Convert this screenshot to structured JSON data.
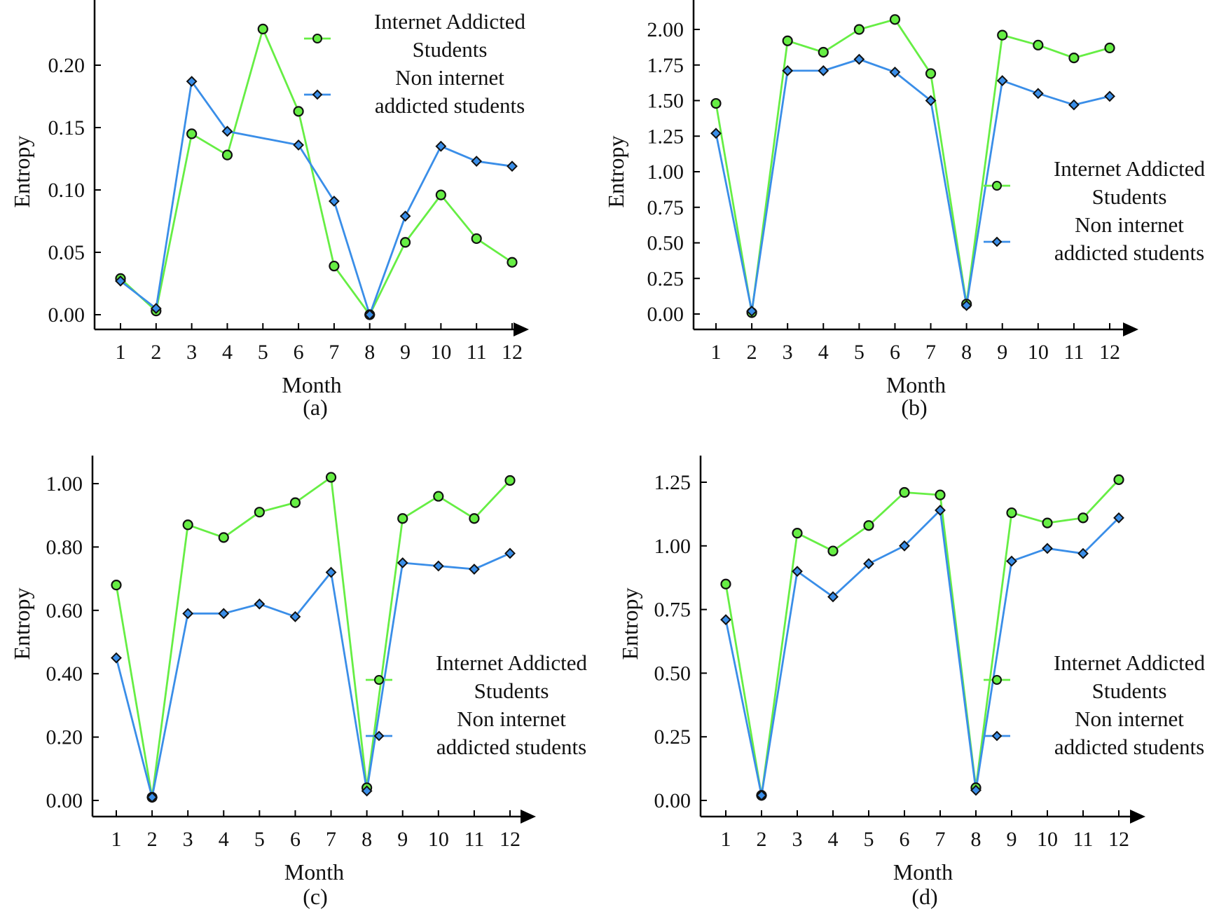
{
  "figure": {
    "colors": {
      "internet_addicted": "#66ee44",
      "non_addicted": "#3a8ee8",
      "axis": "#000000"
    },
    "icons": {
      "internet_addicted": "circle-marker-icon",
      "non_addicted": "diamond-marker-icon"
    }
  },
  "chart_data": [
    {
      "type": "line",
      "caption": "(a)",
      "xlabel": "Month",
      "ylabel": "Entropy",
      "legend_position": "top-right",
      "categories": [
        "1",
        "2",
        "3",
        "4",
        "5",
        "6",
        "7",
        "8",
        "9",
        "10",
        "11",
        "12"
      ],
      "ylim": [
        -0.012,
        0.25
      ],
      "yticks": [
        {
          "value": 0.0,
          "label": "0.00"
        },
        {
          "value": 0.05,
          "label": "0.05"
        },
        {
          "value": 0.1,
          "label": "0.10"
        },
        {
          "value": 0.15,
          "label": "0.15"
        },
        {
          "value": 0.2,
          "label": "0.20"
        }
      ],
      "series": [
        {
          "name": "Internet Addicted Students",
          "legend_lines": [
            "Internet Addicted",
            "Students"
          ],
          "marker": "circle",
          "values": [
            0.029,
            0.003,
            0.145,
            0.128,
            0.229,
            0.163,
            0.039,
            0.0,
            0.058,
            0.096,
            0.061,
            0.042
          ]
        },
        {
          "name": "Non internet addicted students",
          "legend_lines": [
            "Non internet",
            "addicted students"
          ],
          "marker": "diamond",
          "values": [
            0.027,
            0.005,
            0.187,
            0.147,
            null,
            0.136,
            0.091,
            0.0,
            0.079,
            0.135,
            0.123,
            0.119
          ]
        }
      ]
    },
    {
      "type": "line",
      "caption": "(b)",
      "xlabel": "Month",
      "ylabel": "Entropy",
      "legend_position": "center-right",
      "categories": [
        "1",
        "2",
        "3",
        "4",
        "5",
        "6",
        "7",
        "8",
        "9",
        "10",
        "11",
        "12"
      ],
      "ylim": [
        -0.11,
        2.2
      ],
      "yticks": [
        {
          "value": 0.0,
          "label": "0.00"
        },
        {
          "value": 0.25,
          "label": "0.25"
        },
        {
          "value": 0.5,
          "label": "0.50"
        },
        {
          "value": 0.75,
          "label": "0.75"
        },
        {
          "value": 1.0,
          "label": "1.00"
        },
        {
          "value": 1.25,
          "label": "1.25"
        },
        {
          "value": 1.5,
          "label": "1.50"
        },
        {
          "value": 1.75,
          "label": "1.75"
        },
        {
          "value": 2.0,
          "label": "2.00"
        }
      ],
      "series": [
        {
          "name": "Internet Addicted Students",
          "legend_lines": [
            "Internet Addicted",
            "Students"
          ],
          "marker": "circle",
          "values": [
            1.48,
            0.01,
            1.92,
            1.84,
            2.0,
            2.07,
            1.69,
            0.07,
            1.96,
            1.89,
            1.8,
            1.87
          ]
        },
        {
          "name": "Non internet addicted students",
          "legend_lines": [
            "Non internet",
            "addicted students"
          ],
          "marker": "diamond",
          "values": [
            1.27,
            0.02,
            1.71,
            1.71,
            1.79,
            1.7,
            1.5,
            0.06,
            1.64,
            1.55,
            1.47,
            1.53
          ]
        }
      ]
    },
    {
      "type": "line",
      "caption": "(c)",
      "xlabel": "Month",
      "ylabel": "Entropy",
      "legend_position": "bottom-right",
      "categories": [
        "1",
        "2",
        "3",
        "4",
        "5",
        "6",
        "7",
        "8",
        "9",
        "10",
        "11",
        "12"
      ],
      "ylim": [
        -0.05,
        1.09
      ],
      "yticks": [
        {
          "value": 0.0,
          "label": "0.00"
        },
        {
          "value": 0.2,
          "label": "0.20"
        },
        {
          "value": 0.4,
          "label": "0.40"
        },
        {
          "value": 0.6,
          "label": "0.60"
        },
        {
          "value": 0.8,
          "label": "0.80"
        },
        {
          "value": 1.0,
          "label": "1.00"
        }
      ],
      "series": [
        {
          "name": "Internet Addicted Students",
          "legend_lines": [
            "Internet Addicted",
            "Students"
          ],
          "marker": "circle",
          "values": [
            0.68,
            0.01,
            0.87,
            0.83,
            0.91,
            0.94,
            1.02,
            0.04,
            0.89,
            0.96,
            0.89,
            1.01
          ]
        },
        {
          "name": "Non internet addicted students",
          "legend_lines": [
            "Non internet",
            "addicted students"
          ],
          "marker": "diamond",
          "values": [
            0.45,
            0.01,
            0.59,
            0.59,
            0.62,
            0.58,
            0.72,
            0.03,
            0.75,
            0.74,
            0.73,
            0.78
          ]
        }
      ]
    },
    {
      "type": "line",
      "caption": "(d)",
      "xlabel": "Month",
      "ylabel": "Entropy",
      "legend_position": "bottom-right",
      "categories": [
        "1",
        "2",
        "3",
        "4",
        "5",
        "6",
        "7",
        "8",
        "9",
        "10",
        "11",
        "12"
      ],
      "ylim": [
        -0.06,
        1.33
      ],
      "yticks": [
        {
          "value": 0.0,
          "label": "0.00"
        },
        {
          "value": 0.25,
          "label": "0.25"
        },
        {
          "value": 0.5,
          "label": "0.50"
        },
        {
          "value": 0.75,
          "label": "0.75"
        },
        {
          "value": 1.0,
          "label": "1.00"
        },
        {
          "value": 1.25,
          "label": "1.25"
        }
      ],
      "series": [
        {
          "name": "Internet Addicted Students",
          "legend_lines": [
            "Internet Addicted",
            "Students"
          ],
          "marker": "circle",
          "values": [
            0.85,
            0.02,
            1.05,
            0.98,
            1.08,
            1.21,
            1.2,
            0.05,
            1.13,
            1.09,
            1.11,
            1.26
          ]
        },
        {
          "name": "Non internet addicted students",
          "legend_lines": [
            "Non internet",
            "addicted students"
          ],
          "marker": "diamond",
          "values": [
            0.71,
            0.02,
            0.9,
            0.8,
            0.93,
            1.0,
            1.14,
            0.04,
            0.94,
            0.99,
            0.97,
            1.11
          ]
        }
      ]
    }
  ]
}
